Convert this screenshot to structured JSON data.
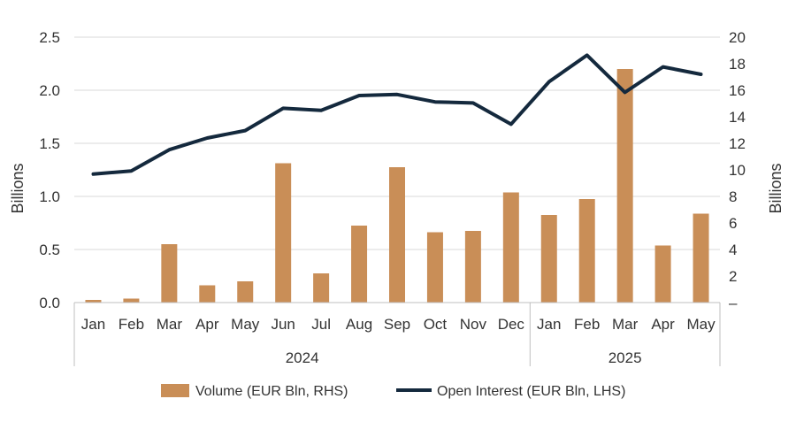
{
  "chart_data": {
    "type": "bar+line",
    "categories": [
      "Jan",
      "Feb",
      "Mar",
      "Apr",
      "May",
      "Jun",
      "Jul",
      "Aug",
      "Sep",
      "Oct",
      "Nov",
      "Dec",
      "Jan",
      "Feb",
      "Mar",
      "Apr",
      "May"
    ],
    "year_groups": [
      {
        "label": "2024",
        "count": 12
      },
      {
        "label": "2025",
        "count": 5
      }
    ],
    "series": [
      {
        "name": "Volume (EUR Bln, RHS)",
        "type": "bar",
        "axis": "right",
        "color": "#C98E57",
        "values": [
          0.2,
          0.3,
          4.4,
          1.3,
          1.6,
          10.5,
          2.2,
          5.8,
          10.2,
          5.3,
          5.4,
          8.3,
          6.6,
          7.8,
          17.6,
          4.3,
          6.7
        ]
      },
      {
        "name": "Open Interest (EUR Bln, LHS)",
        "type": "line",
        "axis": "left",
        "color": "#14293D",
        "values": [
          1.21,
          1.24,
          1.44,
          1.55,
          1.62,
          1.83,
          1.81,
          1.95,
          1.96,
          1.89,
          1.88,
          1.68,
          2.08,
          2.33,
          1.98,
          2.22,
          2.15
        ]
      }
    ],
    "y_left": {
      "label": "Billions",
      "ylim": [
        0,
        2.5
      ],
      "ticks": [
        "0.0",
        "0.5",
        "1.0",
        "1.5",
        "2.0",
        "2.5"
      ]
    },
    "y_right": {
      "label": "Billions",
      "ylim": [
        0,
        20
      ],
      "ticks": [
        "–",
        "2",
        "4",
        "6",
        "8",
        "10",
        "12",
        "14",
        "16",
        "18",
        "20"
      ]
    },
    "grid": true,
    "legend_position": "bottom"
  }
}
